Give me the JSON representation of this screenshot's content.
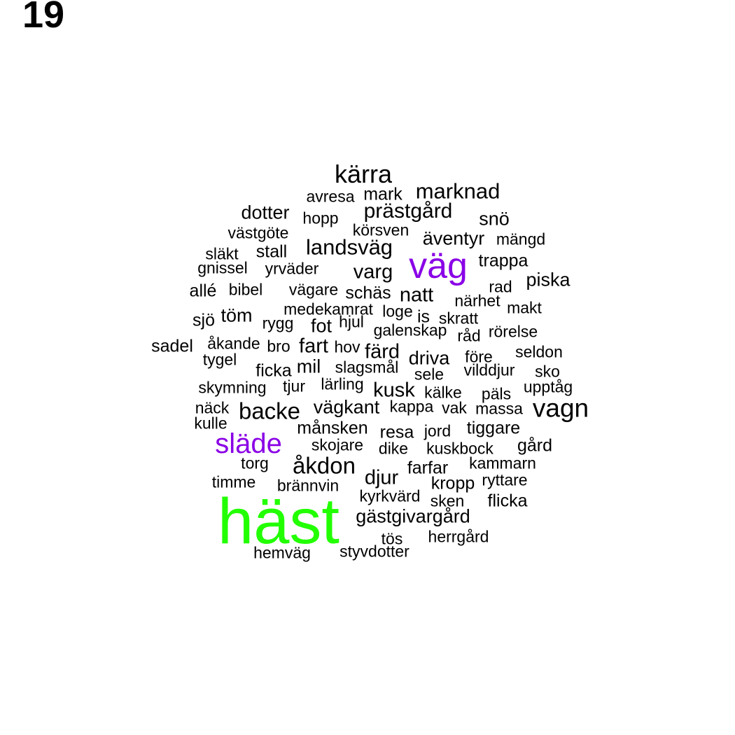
{
  "page_number": "19",
  "colors": {
    "default": "#000000",
    "purple": "#8a00e6",
    "green": "#22ff00"
  },
  "words": [
    {
      "text": "häst",
      "color": "green"
    },
    {
      "text": "väg",
      "color": "purple"
    },
    {
      "text": "släde",
      "color": "purple"
    },
    {
      "text": "kärra"
    },
    {
      "text": "avresa"
    },
    {
      "text": "mark"
    },
    {
      "text": "marknad"
    },
    {
      "text": "dotter"
    },
    {
      "text": "hopp"
    },
    {
      "text": "prästgård"
    },
    {
      "text": "snö"
    },
    {
      "text": "västgöte"
    },
    {
      "text": "körsven"
    },
    {
      "text": "äventyr"
    },
    {
      "text": "mängd"
    },
    {
      "text": "släkt"
    },
    {
      "text": "stall"
    },
    {
      "text": "landsväg"
    },
    {
      "text": "gnissel"
    },
    {
      "text": "yrväder"
    },
    {
      "text": "varg"
    },
    {
      "text": "trappa"
    },
    {
      "text": "allé"
    },
    {
      "text": "bibel"
    },
    {
      "text": "vägare"
    },
    {
      "text": "schäs"
    },
    {
      "text": "natt"
    },
    {
      "text": "rad"
    },
    {
      "text": "piska"
    },
    {
      "text": "medekamrat"
    },
    {
      "text": "loge"
    },
    {
      "text": "närhet"
    },
    {
      "text": "makt"
    },
    {
      "text": "sjö"
    },
    {
      "text": "töm"
    },
    {
      "text": "rygg"
    },
    {
      "text": "fot"
    },
    {
      "text": "hjul"
    },
    {
      "text": "is"
    },
    {
      "text": "skratt"
    },
    {
      "text": "galenskap"
    },
    {
      "text": "råd"
    },
    {
      "text": "rörelse"
    },
    {
      "text": "sadel"
    },
    {
      "text": "åkande"
    },
    {
      "text": "bro"
    },
    {
      "text": "fart"
    },
    {
      "text": "hov"
    },
    {
      "text": "färd"
    },
    {
      "text": "seldon"
    },
    {
      "text": "tygel"
    },
    {
      "text": "driva"
    },
    {
      "text": "före"
    },
    {
      "text": "ficka"
    },
    {
      "text": "mil"
    },
    {
      "text": "slagsmål"
    },
    {
      "text": "sele"
    },
    {
      "text": "vilddjur"
    },
    {
      "text": "sko"
    },
    {
      "text": "skymning"
    },
    {
      "text": "tjur"
    },
    {
      "text": "lärling"
    },
    {
      "text": "kusk"
    },
    {
      "text": "kälke"
    },
    {
      "text": "päls"
    },
    {
      "text": "upptåg"
    },
    {
      "text": "näck"
    },
    {
      "text": "backe"
    },
    {
      "text": "vägkant"
    },
    {
      "text": "kappa"
    },
    {
      "text": "vak"
    },
    {
      "text": "massa"
    },
    {
      "text": "vagn"
    },
    {
      "text": "kulle"
    },
    {
      "text": "månsken"
    },
    {
      "text": "resa"
    },
    {
      "text": "jord"
    },
    {
      "text": "tiggare"
    },
    {
      "text": "skojare"
    },
    {
      "text": "dike"
    },
    {
      "text": "kuskbock"
    },
    {
      "text": "gård"
    },
    {
      "text": "torg"
    },
    {
      "text": "åkdon"
    },
    {
      "text": "farfar"
    },
    {
      "text": "kammarn"
    },
    {
      "text": "timme"
    },
    {
      "text": "brännvin"
    },
    {
      "text": "djur"
    },
    {
      "text": "kropp"
    },
    {
      "text": "ryttare"
    },
    {
      "text": "kyrkvärd"
    },
    {
      "text": "sken"
    },
    {
      "text": "flicka"
    },
    {
      "text": "gästgivargård"
    },
    {
      "text": "tös"
    },
    {
      "text": "herrgård"
    },
    {
      "text": "hemväg"
    },
    {
      "text": "styvdotter"
    }
  ]
}
